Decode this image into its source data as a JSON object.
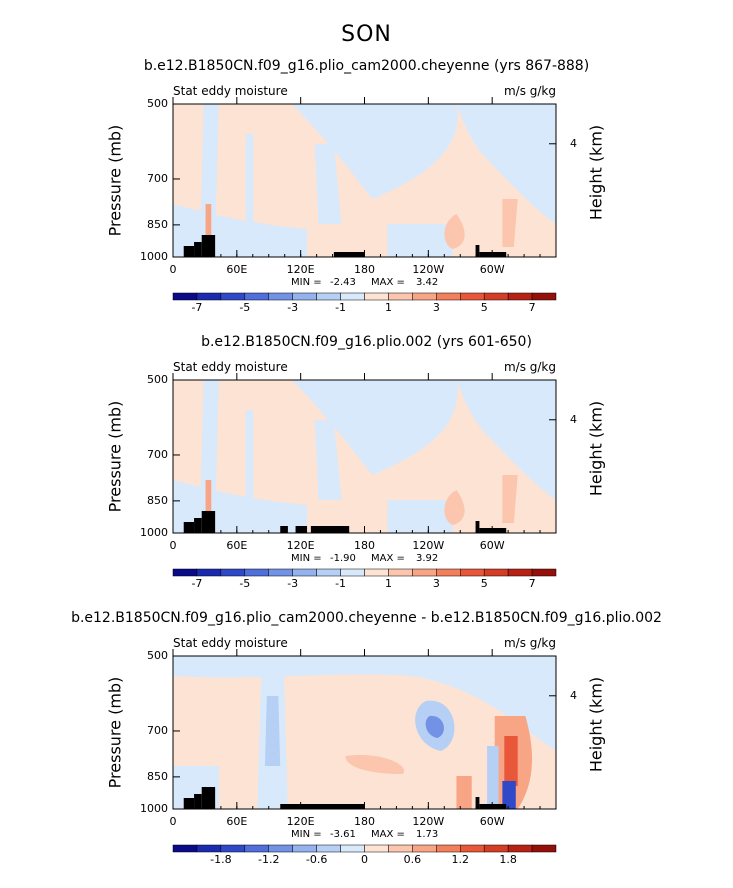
{
  "season": "SON",
  "colors": {
    "pos": [
      "#fde3d4",
      "#fbc6ad",
      "#f8a586",
      "#f3805d",
      "#e9573a",
      "#d43d26",
      "#b82215",
      "#94100b"
    ],
    "neg": [
      "#d8e9fb",
      "#b6d0f5",
      "#94b3ee",
      "#7293e5",
      "#506fdc",
      "#3049c9",
      "#1b2bb0",
      "#0b0a88"
    ]
  },
  "chart_data": [
    {
      "type": "contour",
      "title": "b.e12.B1850CN.f09_g16.plio_cam2000.cheyenne (yrs 867-888)",
      "field": "Stat eddy moisture",
      "units": "m/s g/kg",
      "ylabel": "Pressure (mb)",
      "ylabel_right": "Height (km)",
      "xlim": [
        0,
        360
      ],
      "ylim": [
        1000,
        500
      ],
      "x_ticks": [
        "0",
        "60E",
        "120E",
        "180",
        "120W",
        "60W"
      ],
      "y_ticks": [
        "500",
        "700",
        "850",
        "1000"
      ],
      "height_ticks": [
        "4"
      ],
      "min_label": "MIN =",
      "min": "-2.43",
      "max_label": "MAX =",
      "max": "3.42",
      "colorbar_labels": [
        "-7",
        "-5",
        "-3",
        "-1",
        "1",
        "3",
        "5",
        "7"
      ]
    },
    {
      "type": "contour",
      "title": "b.e12.B1850CN.f09_g16.plio.002 (yrs 601-650)",
      "field": "Stat eddy moisture",
      "units": "m/s g/kg",
      "ylabel": "Pressure (mb)",
      "ylabel_right": "Height (km)",
      "xlim": [
        0,
        360
      ],
      "ylim": [
        1000,
        500
      ],
      "x_ticks": [
        "0",
        "60E",
        "120E",
        "180",
        "120W",
        "60W"
      ],
      "y_ticks": [
        "500",
        "700",
        "850",
        "1000"
      ],
      "height_ticks": [
        "4"
      ],
      "min_label": "MIN =",
      "min": "-1.90",
      "max_label": "MAX =",
      "max": "3.92",
      "colorbar_labels": [
        "-7",
        "-5",
        "-3",
        "-1",
        "1",
        "3",
        "5",
        "7"
      ]
    },
    {
      "type": "contour",
      "title": "b.e12.B1850CN.f09_g16.plio_cam2000.cheyenne - b.e12.B1850CN.f09_g16.plio.002",
      "field": "Stat eddy moisture",
      "units": "m/s g/kg",
      "ylabel": "Pressure (mb)",
      "ylabel_right": "Height (km)",
      "xlim": [
        0,
        360
      ],
      "ylim": [
        1000,
        500
      ],
      "x_ticks": [
        "0",
        "60E",
        "120E",
        "180",
        "120W",
        "60W"
      ],
      "y_ticks": [
        "500",
        "700",
        "850",
        "1000"
      ],
      "height_ticks": [
        "4"
      ],
      "min_label": "MIN =",
      "min": "-3.61",
      "max_label": "MAX =",
      "max": "1.73",
      "colorbar_labels": [
        "-1.8",
        "-1.2",
        "-0.6",
        "0",
        "0.6",
        "1.2",
        "1.8"
      ]
    }
  ]
}
